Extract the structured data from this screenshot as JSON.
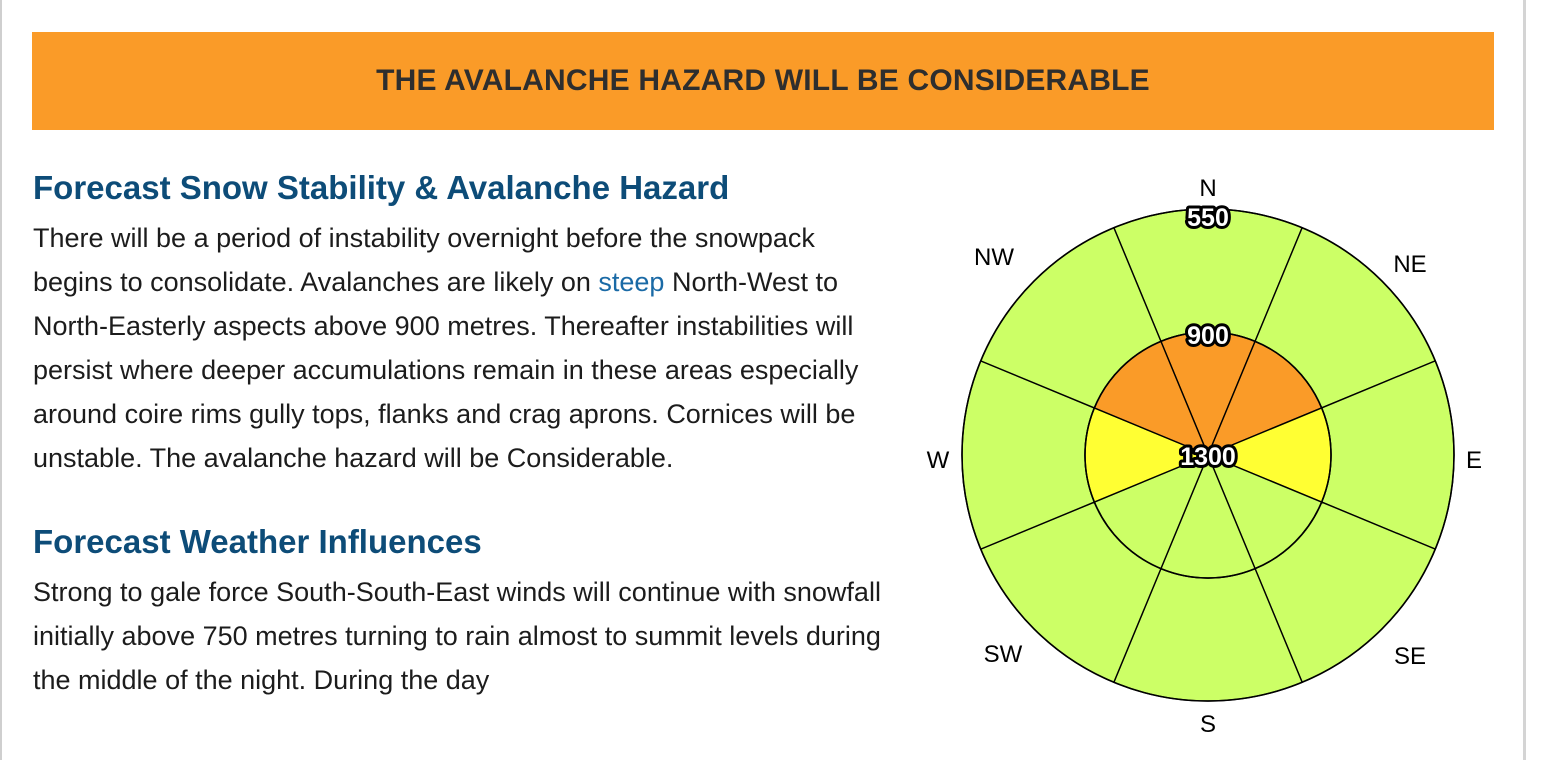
{
  "banner": {
    "text": "THE AVALANCHE HAZARD WILL BE CONSIDERABLE",
    "color": "#fa9b28"
  },
  "stability": {
    "heading": "Forecast Snow Stability & Avalanche Hazard",
    "text_before_link": "There will be a period of instability overnight before the snowpack begins to consolidate. Avalanches are likely on ",
    "link_text": "steep",
    "text_after_link": " North-West to North-Easterly aspects above 900 metres. Thereafter instabilities will persist where deeper accumulations remain in these areas especially around coire rims gully tops, flanks and crag aprons. Cornices will be unstable. The avalanche hazard will be Considerable."
  },
  "weather": {
    "heading": "Forecast Weather Influences",
    "text": "Strong to gale force South-South-East winds will continue with snowfall initially above 750 metres turning to rain almost to summit levels during the middle of the night. During the day"
  },
  "rose": {
    "directions": [
      "N",
      "NE",
      "E",
      "SE",
      "S",
      "SW",
      "W",
      "NW"
    ],
    "elevations": {
      "outer": "550",
      "middle": "900",
      "inner": "1300"
    },
    "colors": {
      "low": "#ccff66",
      "moderate": "#ffff33",
      "considerable": "#fa9b28"
    },
    "hazard": {
      "outer_ring": [
        "low",
        "low",
        "low",
        "low",
        "low",
        "low",
        "low",
        "low"
      ],
      "inner_disc": [
        "considerable",
        "considerable",
        "moderate",
        "low",
        "low",
        "low",
        "moderate",
        "considerable"
      ]
    }
  }
}
